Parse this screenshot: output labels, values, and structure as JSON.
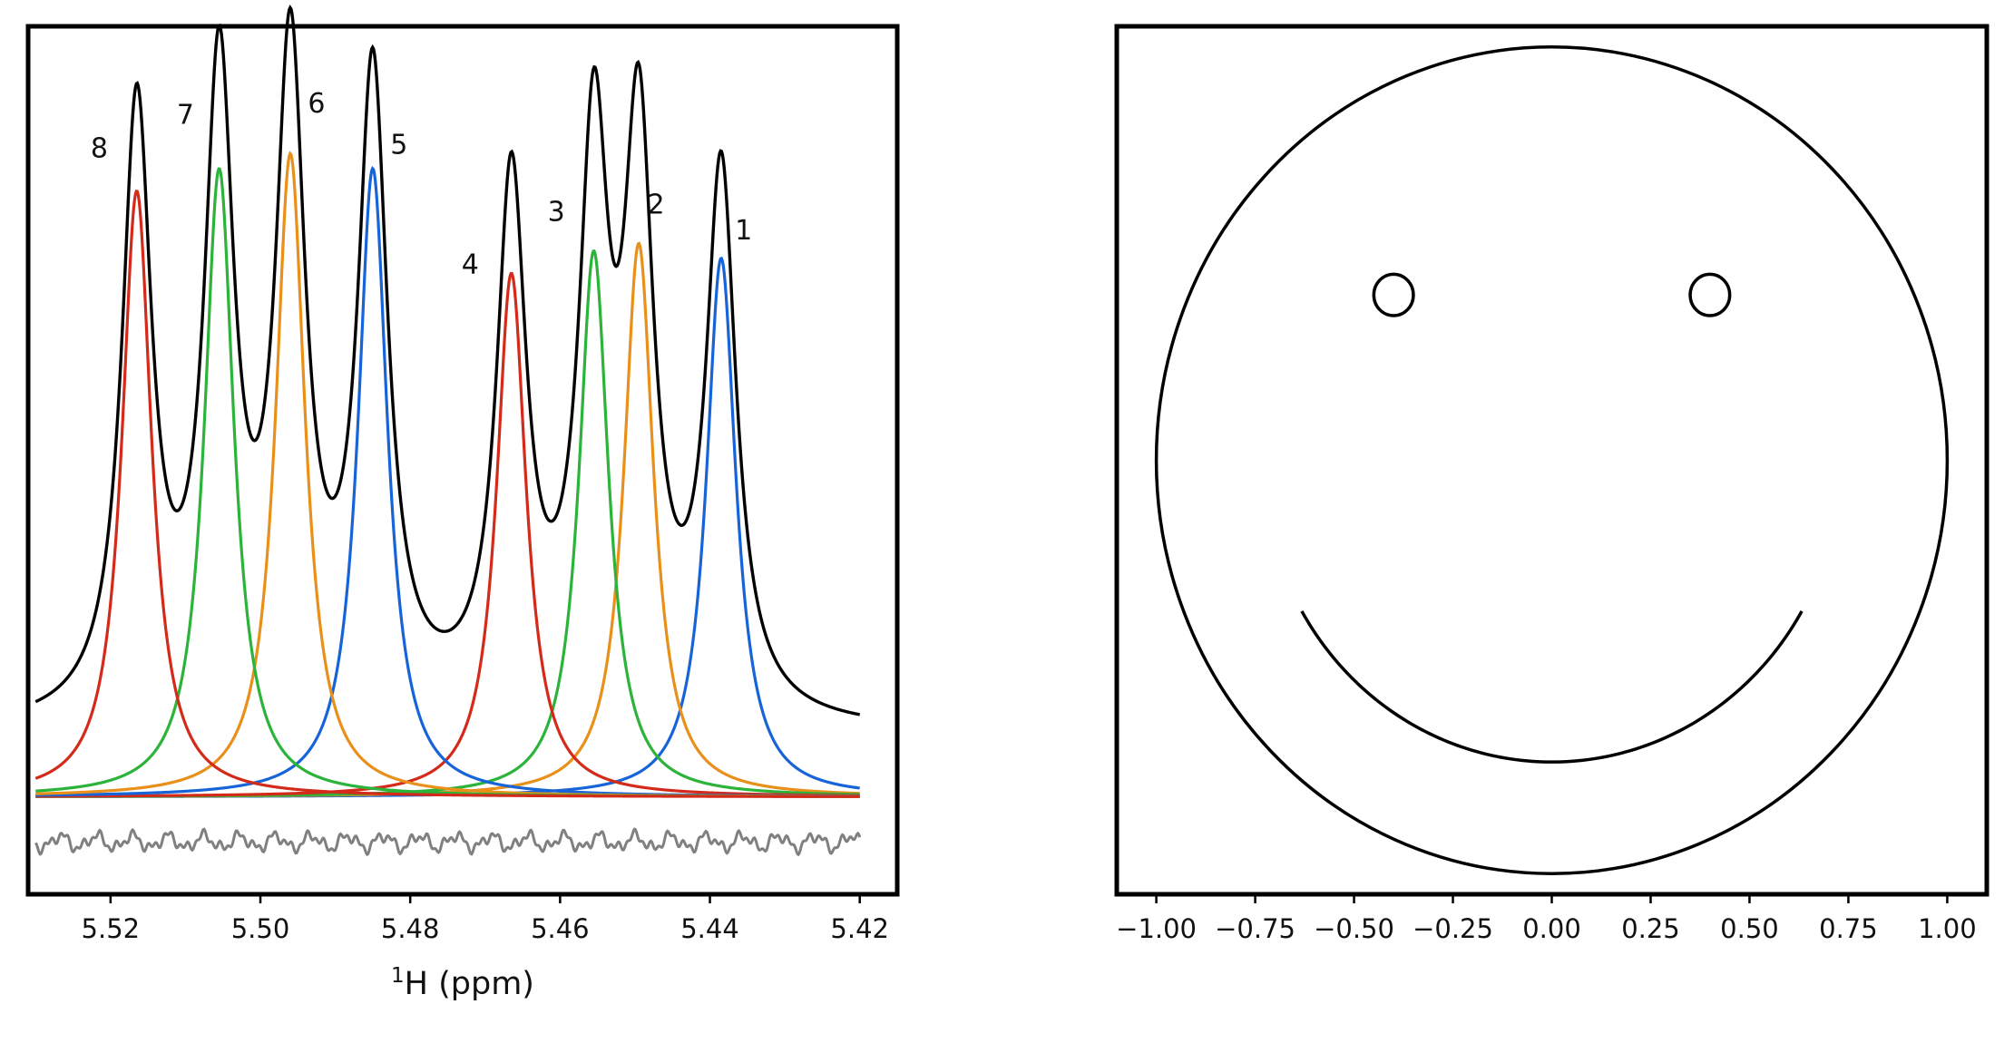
{
  "chart_data": [
    {
      "type": "line",
      "panel": "left",
      "title": "",
      "xlabel_main": "H (ppm)",
      "xlabel_superscript": "1",
      "ylabel": "",
      "xlim": [
        5.531,
        5.415
      ],
      "ylim": [
        -0.13,
        1.03
      ],
      "x_axis_reversed": true,
      "y_ticks_visible": false,
      "grid": false,
      "legend": "none",
      "x_ticks": [
        "5.52",
        "5.50",
        "5.48",
        "5.46",
        "5.44",
        "5.42"
      ],
      "x_tick_values": [
        5.52,
        5.5,
        5.48,
        5.46,
        5.44,
        5.42
      ],
      "x_range_plotted": [
        5.53,
        5.42
      ],
      "baseline_level": 0.0,
      "sum_offset": 0.085,
      "residual": {
        "color": "#808080",
        "offset": -0.06,
        "amplitude": 0.015
      },
      "colors": {
        "sum": "#000000",
        "blue": "#1764d9",
        "orange": "#e8901a",
        "green": "#2cb33a",
        "red": "#d42a1a"
      },
      "series": [
        {
          "peak_label": "1",
          "center": 5.4385,
          "height": 0.72,
          "hwhm": 0.0024,
          "color": "#1764d9"
        },
        {
          "peak_label": "2",
          "center": 5.4495,
          "height": 0.74,
          "hwhm": 0.0024,
          "color": "#e8901a"
        },
        {
          "peak_label": "3",
          "center": 5.4555,
          "height": 0.73,
          "hwhm": 0.0024,
          "color": "#2cb33a"
        },
        {
          "peak_label": "4",
          "center": 5.4665,
          "height": 0.7,
          "hwhm": 0.0024,
          "color": "#d42a1a"
        },
        {
          "peak_label": "5",
          "center": 5.485,
          "height": 0.84,
          "hwhm": 0.0024,
          "color": "#1764d9"
        },
        {
          "peak_label": "6",
          "center": 5.496,
          "height": 0.86,
          "hwhm": 0.0024,
          "color": "#e8901a"
        },
        {
          "peak_label": "7",
          "center": 5.5055,
          "height": 0.84,
          "hwhm": 0.0024,
          "color": "#2cb33a"
        },
        {
          "peak_label": "8",
          "center": 5.5165,
          "height": 0.81,
          "hwhm": 0.0024,
          "color": "#d42a1a"
        }
      ],
      "peak_labels": [
        {
          "text": "1",
          "x": 5.4355,
          "y": 0.745
        },
        {
          "text": "2",
          "x": 5.4472,
          "y": 0.78
        },
        {
          "text": "3",
          "x": 5.4605,
          "y": 0.77
        },
        {
          "text": "4",
          "x": 5.472,
          "y": 0.7
        },
        {
          "text": "5",
          "x": 5.4815,
          "y": 0.86
        },
        {
          "text": "6",
          "x": 5.4925,
          "y": 0.915
        },
        {
          "text": "7",
          "x": 5.51,
          "y": 0.9
        },
        {
          "text": "8",
          "x": 5.5215,
          "y": 0.855
        }
      ]
    },
    {
      "type": "line",
      "panel": "right",
      "title": "",
      "xlabel": "",
      "ylabel": "",
      "xlim": [
        -1.1,
        1.1
      ],
      "ylim": [
        -1.05,
        1.05
      ],
      "y_ticks_visible": false,
      "grid": false,
      "legend": "none",
      "x_ticks": [
        "−1.00",
        "−0.75",
        "−0.50",
        "−0.25",
        "0.00",
        "0.25",
        "0.50",
        "0.75",
        "1.00"
      ],
      "x_tick_values": [
        -1.0,
        -0.75,
        -0.5,
        -0.25,
        0.0,
        0.25,
        0.5,
        0.75,
        1.0
      ],
      "line_color": "#000000",
      "face": {
        "cx": 0.0,
        "cy": 0.0,
        "r": 1.0
      },
      "eyes": [
        {
          "cx": -0.4,
          "cy": 0.4,
          "r": 0.05
        },
        {
          "cx": 0.4,
          "cy": 0.4,
          "r": 0.05
        }
      ],
      "smile": {
        "cx": 0.0,
        "cy": 0.0,
        "r": 0.73,
        "theta_start_deg": 210,
        "theta_end_deg": 330
      }
    }
  ]
}
